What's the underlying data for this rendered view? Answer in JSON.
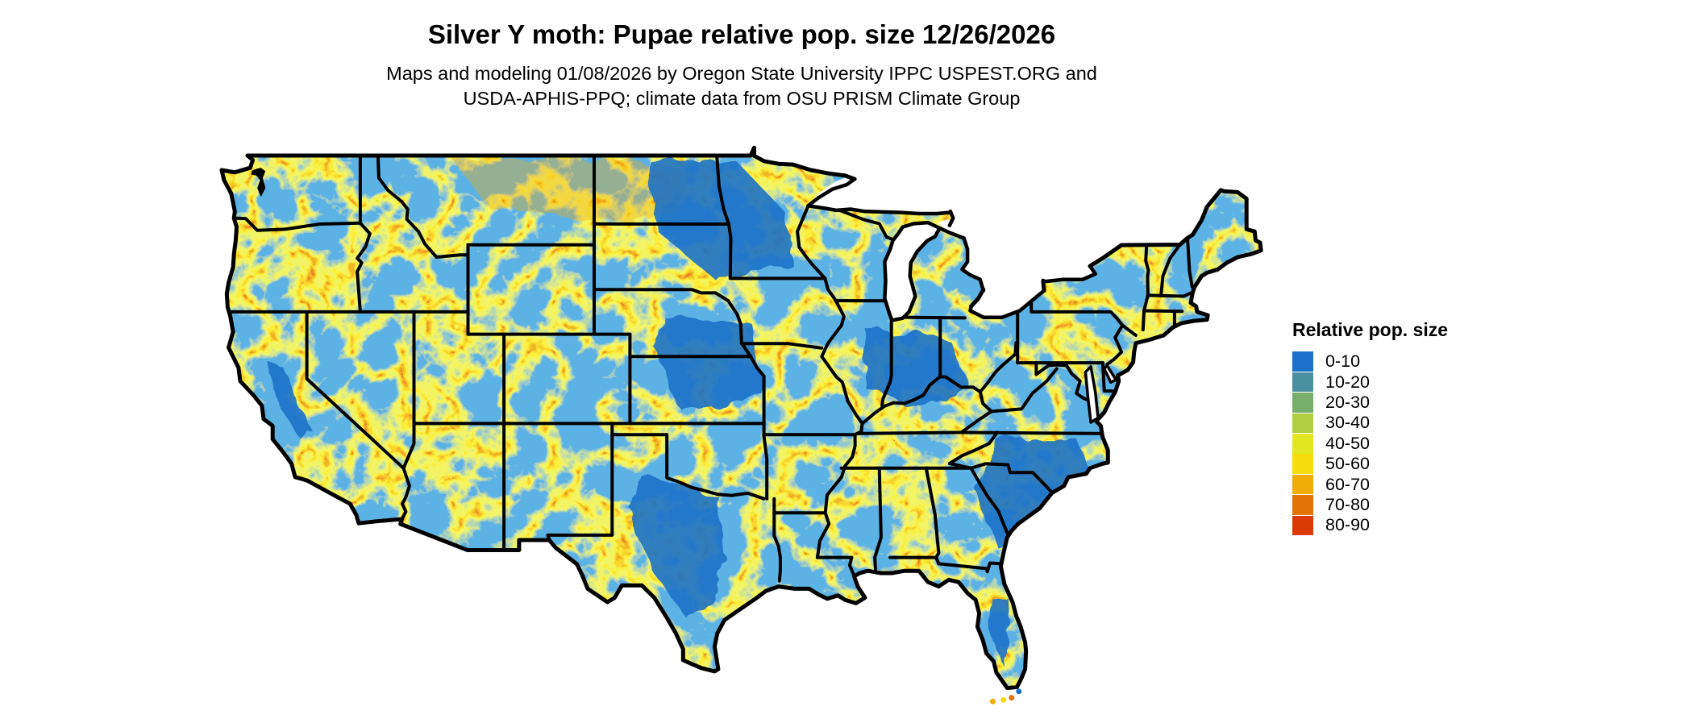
{
  "header": {
    "title": "Silver Y moth: Pupae relative pop. size 12/26/2026",
    "subtitle_line1": "Maps and modeling 01/08/2026 by Oregon State University IPPC USPEST.ORG and",
    "subtitle_line2": "USDA-APHIS-PPQ; climate data from OSU PRISM Climate Group"
  },
  "legend": {
    "title": "Relative pop. size",
    "items": [
      {
        "label": "0-10",
        "color": "#1B72C8"
      },
      {
        "label": "10-20",
        "color": "#4A90A0"
      },
      {
        "label": "20-30",
        "color": "#78AE6C"
      },
      {
        "label": "30-40",
        "color": "#B1CD42"
      },
      {
        "label": "40-50",
        "color": "#E3E622"
      },
      {
        "label": "50-60",
        "color": "#F7DD0C"
      },
      {
        "label": "60-70",
        "color": "#F1AC08"
      },
      {
        "label": "70-80",
        "color": "#E27405"
      },
      {
        "label": "80-90",
        "color": "#DA3B05"
      }
    ]
  },
  "map": {
    "border_color": "#000000",
    "water_color": "#FFFFFF",
    "background_color": "#FFFFFF"
  }
}
